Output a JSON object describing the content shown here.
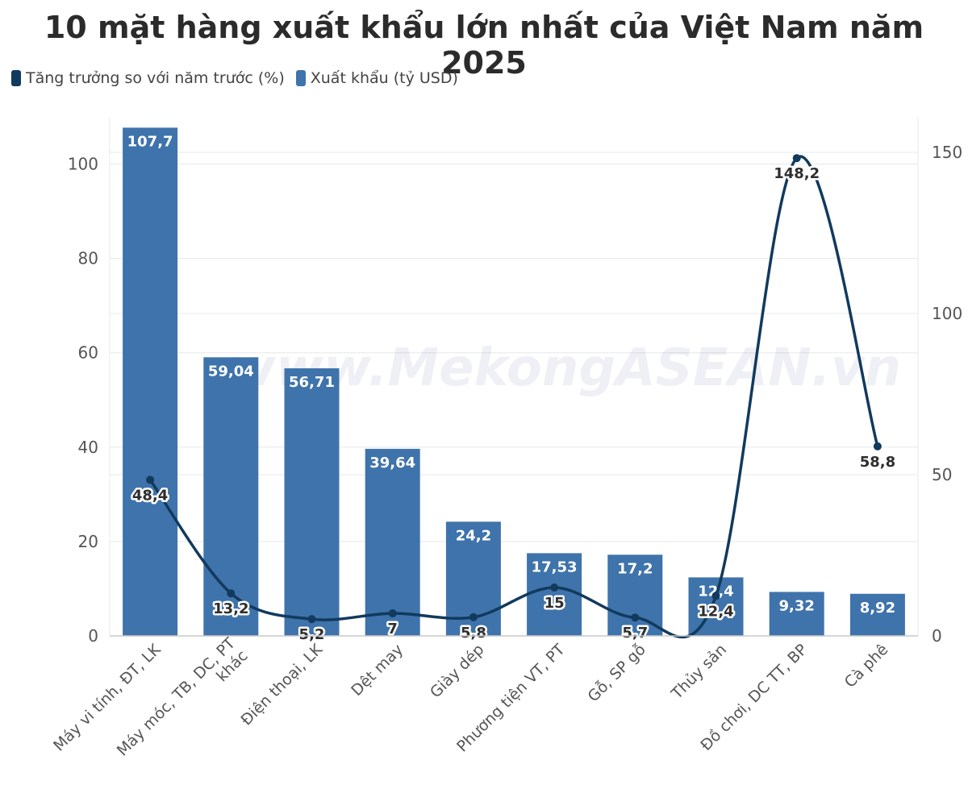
{
  "title": "10 mặt hàng xuất khẩu lớn nhất của Việt Nam năm 2025",
  "watermark": "www.MekongASEAN.vn",
  "colors": {
    "bar": "#3f73ab",
    "line": "#113a5d",
    "grid": "#e6e8eb",
    "axis": "#c9c9c9"
  },
  "chart_data": {
    "type": "bar",
    "categories": [
      "Máy vi tính, ĐT, LK",
      "Máy móc, TB, DC, PT khác",
      "Điện thoại, LK",
      "Dệt may",
      "Giày dép",
      "Phương tiện VT, PT",
      "Gỗ, SP gỗ",
      "Thủy sản",
      "Đồ chơi, DC TT, BP",
      "Cà phê"
    ],
    "series": [
      {
        "name": "Xuất khẩu (tỷ USD)",
        "type": "bar",
        "axis": "left",
        "values": [
          107.7,
          59.04,
          56.71,
          39.64,
          24.2,
          17.53,
          17.2,
          12.4,
          9.32,
          8.92
        ],
        "labels": [
          "107,7",
          "59,04",
          "56,71",
          "39,64",
          "24,2",
          "17,53",
          "17,2",
          "12,4",
          "9,32",
          "8,92"
        ]
      },
      {
        "name": "Tăng trưởng so với năm trước (%)",
        "type": "line",
        "axis": "right",
        "values": [
          48.4,
          13.2,
          5.2,
          7,
          5.8,
          15,
          5.7,
          12.4,
          148.2,
          58.8
        ],
        "labels": [
          "48,4",
          "13,2",
          "5,2",
          "7",
          "5,8",
          "15",
          "5,7",
          "12,4",
          "148,2",
          "58,8"
        ]
      }
    ],
    "y_left": {
      "range": [
        0,
        110
      ],
      "ticks": [
        0,
        20,
        40,
        60,
        80,
        100
      ]
    },
    "y_right": {
      "range": [
        0,
        160
      ],
      "ticks": [
        0,
        50,
        100,
        150
      ]
    },
    "legend": {
      "position": "top-left",
      "items": [
        "Tăng trưởng so với năm trước (%)",
        "Xuất khẩu (tỷ USD)"
      ]
    },
    "grid": true
  }
}
